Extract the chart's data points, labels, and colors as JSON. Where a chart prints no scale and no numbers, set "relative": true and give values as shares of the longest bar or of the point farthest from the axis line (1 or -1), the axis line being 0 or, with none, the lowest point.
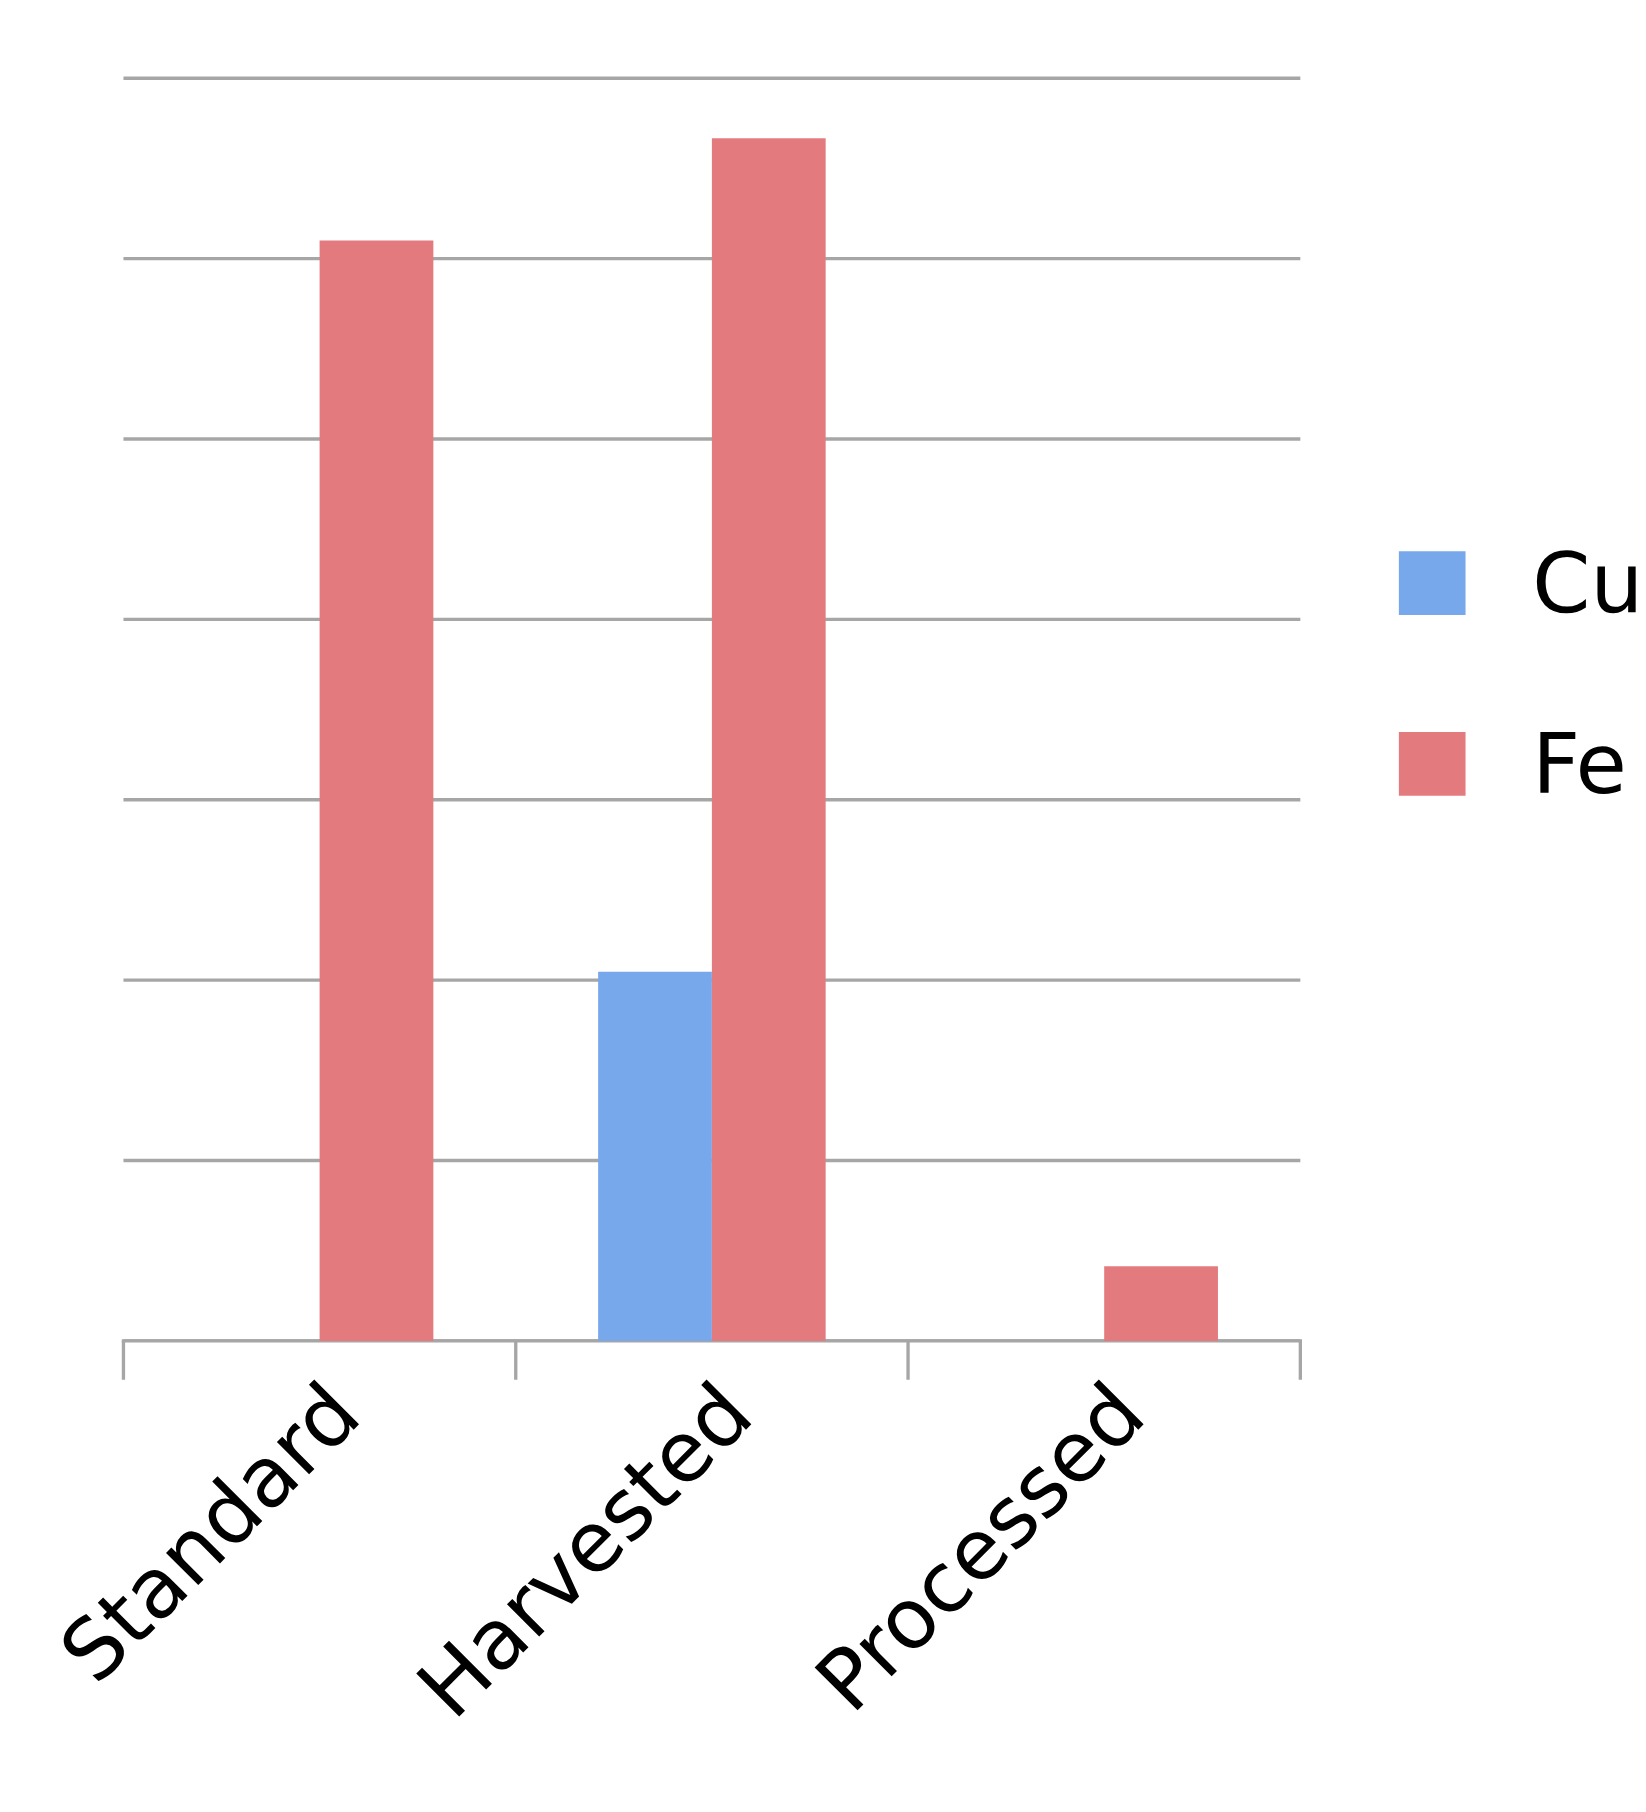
{
  "chart_data": {
    "type": "bar",
    "relative": true,
    "categories": [
      "Standard",
      "Harvested",
      "Processed"
    ],
    "series": [
      {
        "name": "Cu",
        "color": "#78a8ec",
        "values": [
          0,
          0.307,
          0
        ]
      },
      {
        "name": "Fe",
        "color": "#e37b7e",
        "values": [
          0.915,
          1,
          0.062
        ]
      }
    ],
    "grid": "y",
    "legend": "right"
  }
}
